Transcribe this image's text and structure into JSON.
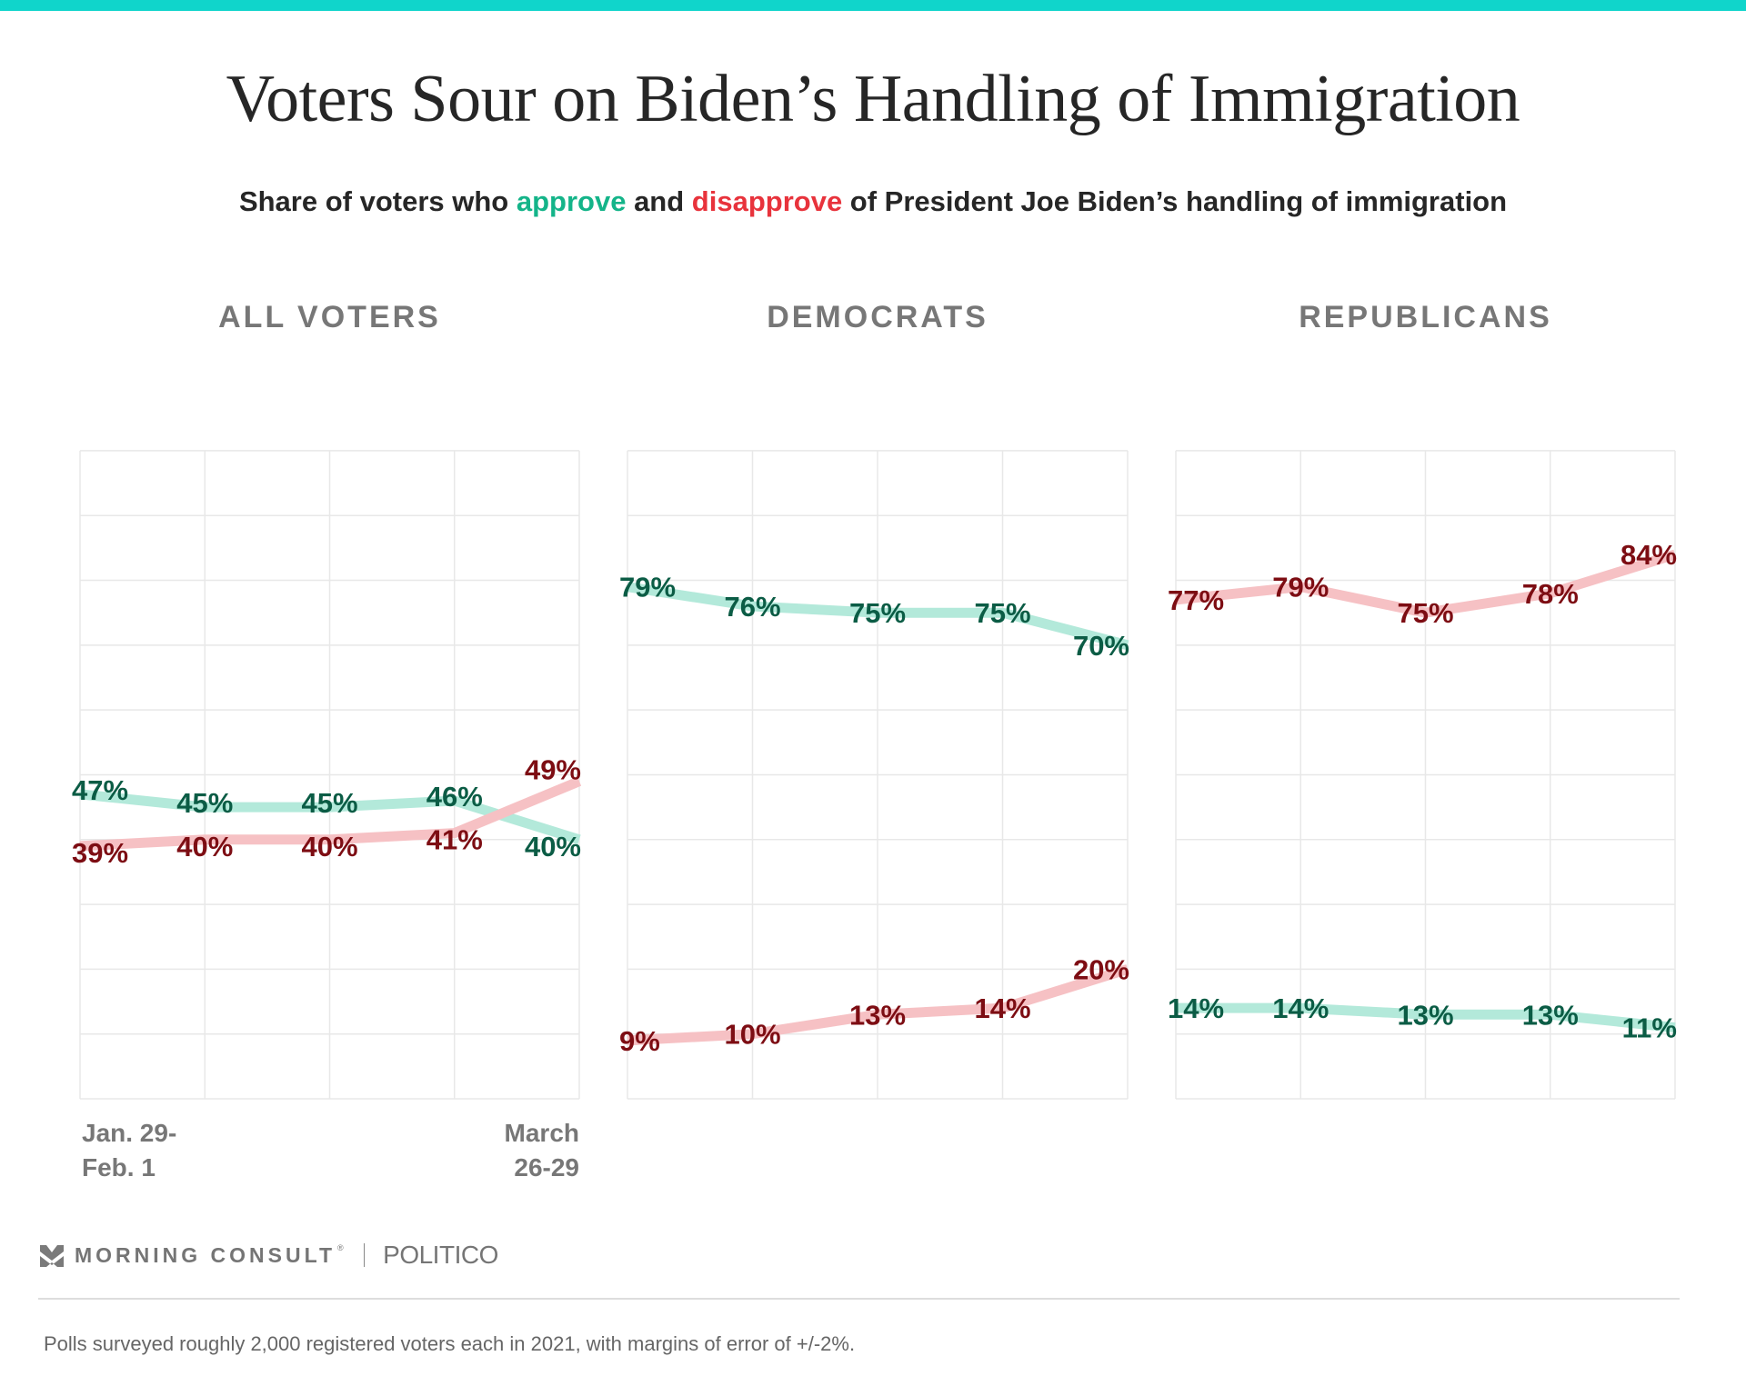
{
  "header": {
    "title": "Voters Sour on Biden’s Handling of Immigration",
    "subtitle_parts": {
      "pre": "Share of voters who ",
      "approve": "approve",
      "mid": " and ",
      "disapprove": "disapprove",
      "post": " of President Joe Biden’s handling of immigration"
    }
  },
  "colors": {
    "accent_bar": "#10d5cb",
    "approve_line": "#b3e9da",
    "approve_label": "#0b5c45",
    "approve_text": "#14b489",
    "disapprove_line": "#f6c1c4",
    "disapprove_label": "#7d0d13",
    "disapprove_text": "#e8333c"
  },
  "chart_data": [
    {
      "type": "line",
      "title": "ALL VOTERS",
      "x_labels": [
        "Jan. 29-\nFeb. 1",
        "March\n26-29"
      ],
      "x_label_lines": {
        "start": [
          "Jan. 29-",
          "Feb. 1"
        ],
        "end": [
          "March",
          "26-29"
        ]
      },
      "ylim": [
        0,
        100
      ],
      "y_grid_step": 10,
      "grid": true,
      "series": [
        {
          "name": "approve",
          "values": [
            47,
            45,
            45,
            46,
            40
          ]
        },
        {
          "name": "disapprove",
          "values": [
            39,
            40,
            40,
            41,
            49
          ]
        }
      ]
    },
    {
      "type": "line",
      "title": "DEMOCRATS",
      "ylim": [
        0,
        100
      ],
      "y_grid_step": 10,
      "grid": true,
      "series": [
        {
          "name": "approve",
          "values": [
            79,
            76,
            75,
            75,
            70
          ]
        },
        {
          "name": "disapprove",
          "values": [
            9,
            10,
            13,
            14,
            20
          ]
        }
      ]
    },
    {
      "type": "line",
      "title": "REPUBLICANS",
      "ylim": [
        0,
        100
      ],
      "y_grid_step": 10,
      "grid": true,
      "series": [
        {
          "name": "approve",
          "values": [
            14,
            14,
            13,
            13,
            11
          ]
        },
        {
          "name": "disapprove",
          "values": [
            77,
            79,
            75,
            78,
            84
          ]
        }
      ]
    }
  ],
  "footer": {
    "brand_primary": "MORNING CONSULT",
    "brand_registered": "®",
    "brand_secondary": "POLITICO",
    "note": "Polls surveyed roughly 2,000 registered voters each in 2021, with margins of error of +/-2%."
  }
}
